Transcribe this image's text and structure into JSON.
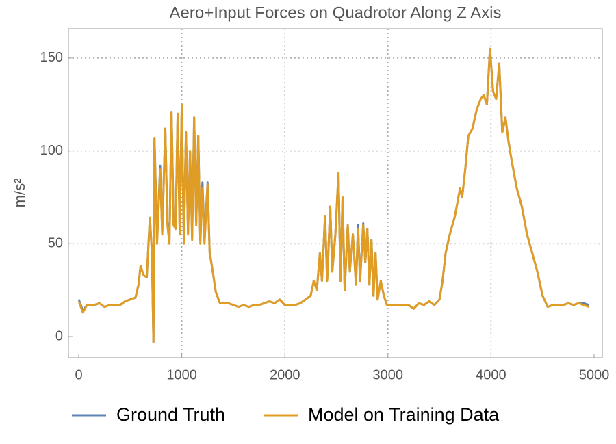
{
  "chart_data": {
    "type": "line",
    "title": "Aero+Input Forces on Quadrotor Along Z Axis",
    "y_label": "m/s²",
    "x": [
      0,
      40,
      80,
      150,
      200,
      250,
      300,
      350,
      400,
      450,
      500,
      550,
      580,
      600,
      630,
      660,
      690,
      710,
      725,
      735,
      760,
      790,
      810,
      840,
      860,
      880,
      900,
      920,
      940,
      960,
      980,
      1000,
      1020,
      1040,
      1060,
      1080,
      1100,
      1120,
      1140,
      1160,
      1180,
      1200,
      1220,
      1250,
      1270,
      1300,
      1330,
      1370,
      1400,
      1450,
      1500,
      1550,
      1600,
      1650,
      1700,
      1750,
      1800,
      1850,
      1900,
      1950,
      2000,
      2050,
      2100,
      2150,
      2200,
      2250,
      2280,
      2310,
      2340,
      2360,
      2390,
      2410,
      2440,
      2460,
      2490,
      2520,
      2540,
      2560,
      2580,
      2610,
      2630,
      2660,
      2690,
      2710,
      2730,
      2760,
      2780,
      2800,
      2820,
      2840,
      2860,
      2880,
      2900,
      2930,
      2960,
      2990,
      3050,
      3100,
      3150,
      3200,
      3250,
      3300,
      3350,
      3400,
      3450,
      3500,
      3530,
      3560,
      3600,
      3650,
      3700,
      3720,
      3750,
      3780,
      3820,
      3860,
      3900,
      3930,
      3960,
      3990,
      4020,
      4050,
      4080,
      4110,
      4140,
      4170,
      4200,
      4250,
      4300,
      4350,
      4400,
      4450,
      4500,
      4550,
      4600,
      4650,
      4700,
      4750,
      4800,
      4850,
      4900,
      4950
    ],
    "series": [
      {
        "name": "Ground Truth",
        "color": "#5e81b5",
        "values": [
          20,
          14,
          17,
          17,
          18,
          16,
          17,
          17,
          17,
          19,
          20,
          21,
          28,
          38,
          33,
          32,
          64,
          45,
          -3,
          107,
          52,
          92,
          56,
          112,
          62,
          52,
          121,
          62,
          58,
          120,
          57,
          125,
          52,
          110,
          57,
          100,
          54,
          118,
          62,
          108,
          52,
          83,
          52,
          83,
          46,
          35,
          24,
          18,
          18,
          18,
          17,
          16,
          17,
          16,
          17,
          17,
          18,
          19,
          18,
          20,
          17,
          17,
          17,
          18,
          20,
          22,
          30,
          25,
          45,
          30,
          65,
          30,
          70,
          35,
          55,
          88,
          30,
          75,
          25,
          60,
          35,
          55,
          28,
          60,
          30,
          61,
          40,
          58,
          28,
          52,
          22,
          45,
          20,
          30,
          22,
          17,
          17,
          17,
          17,
          17,
          15,
          18,
          17,
          19,
          17,
          20,
          30,
          45,
          55,
          65,
          80,
          75,
          90,
          108,
          112,
          122,
          128,
          130,
          125,
          155,
          132,
          128,
          147,
          110,
          118,
          105,
          95,
          80,
          70,
          55,
          45,
          35,
          22,
          16,
          17,
          17,
          17,
          18,
          17,
          18,
          18,
          17
        ]
      },
      {
        "name": "Model on Training Data",
        "color": "#e19c24",
        "values": [
          19,
          13,
          17,
          17,
          18,
          16,
          17,
          17,
          17,
          19,
          20,
          21,
          28,
          38,
          33,
          32,
          64,
          45,
          -3,
          107,
          50,
          90,
          55,
          112,
          60,
          50,
          121,
          60,
          58,
          120,
          55,
          125,
          50,
          110,
          55,
          100,
          52,
          118,
          60,
          108,
          50,
          80,
          50,
          82,
          45,
          35,
          24,
          18,
          18,
          18,
          17,
          16,
          17,
          16,
          17,
          17,
          18,
          19,
          18,
          20,
          17,
          17,
          17,
          18,
          20,
          22,
          30,
          25,
          45,
          30,
          65,
          30,
          70,
          35,
          55,
          88,
          30,
          75,
          25,
          60,
          35,
          55,
          28,
          58,
          30,
          60,
          40,
          58,
          28,
          52,
          22,
          45,
          20,
          30,
          22,
          17,
          17,
          17,
          17,
          17,
          15,
          18,
          17,
          19,
          17,
          20,
          30,
          45,
          55,
          65,
          80,
          75,
          90,
          108,
          112,
          122,
          128,
          130,
          125,
          155,
          132,
          128,
          147,
          110,
          118,
          105,
          95,
          80,
          70,
          55,
          45,
          35,
          22,
          16,
          17,
          17,
          17,
          18,
          17,
          18,
          17,
          16
        ]
      }
    ],
    "xlim": [
      -100,
      5080
    ],
    "ylim": [
      -11.4,
      165.8
    ],
    "xticks": [
      0,
      1000,
      2000,
      3000,
      4000,
      5000
    ],
    "yticks": [
      0,
      50,
      100,
      150
    ],
    "grid": true
  }
}
